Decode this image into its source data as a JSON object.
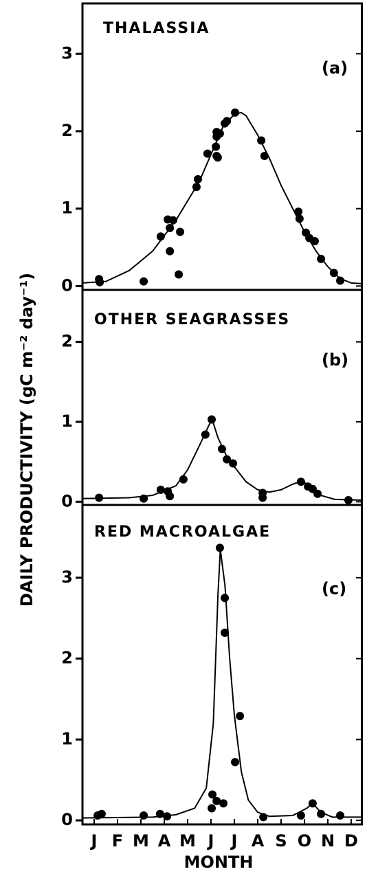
{
  "figure": {
    "ylabel": "DAILY PRODUCTIVITY (gC m⁻² day⁻¹)",
    "xlabel": "MONTH"
  },
  "chart_data": [
    {
      "type": "scatter",
      "title": "THALASSIA",
      "annotation": "(a)",
      "xlim": [
        0,
        12
      ],
      "ylim": [
        -0.05,
        3.65
      ],
      "yticks": [
        0,
        1,
        2,
        3
      ],
      "grid": false,
      "series": [
        {
          "type": "scatter",
          "color": "#000000",
          "x": [
            0.71,
            0.74,
            2.62,
            3.35,
            3.65,
            3.74,
            3.88,
            3.74,
            4.18,
            4.12,
            4.88,
            4.94,
            5.35,
            5.71,
            5.74,
            5.74,
            5.74,
            5.79,
            5.88,
            6.09,
            6.18,
            6.53,
            7.65,
            7.79,
            9.24,
            9.29,
            9.56,
            9.71,
            9.94,
            10.21,
            10.76,
            11.03
          ],
          "values": [
            0.09,
            0.05,
            0.06,
            0.64,
            0.86,
            0.75,
            0.85,
            0.45,
            0.7,
            0.15,
            1.28,
            1.38,
            1.71,
            1.8,
            1.93,
            1.99,
            1.68,
            1.66,
            1.97,
            2.1,
            2.13,
            2.24,
            1.88,
            1.68,
            0.96,
            0.87,
            0.69,
            0.62,
            0.58,
            0.35,
            0.17,
            0.07
          ]
        },
        {
          "type": "line",
          "color": "#000000",
          "x": [
            0,
            1,
            2,
            3,
            4,
            5,
            5.5,
            6,
            6.5,
            6.8,
            7,
            7.5,
            8,
            8.5,
            9,
            9.5,
            10,
            10.5,
            11,
            11.5,
            12
          ],
          "values": [
            0.04,
            0.06,
            0.2,
            0.45,
            0.85,
            1.35,
            1.7,
            2.05,
            2.22,
            2.24,
            2.2,
            1.95,
            1.65,
            1.3,
            1.0,
            0.7,
            0.45,
            0.25,
            0.1,
            0.04,
            0.03
          ]
        }
      ]
    },
    {
      "type": "scatter",
      "title": "OTHER SEAGRASSES",
      "annotation": "(b)",
      "xlim": [
        0,
        12
      ],
      "ylim": [
        -0.04,
        2.65
      ],
      "yticks": [
        0,
        1,
        2
      ],
      "grid": false,
      "series": [
        {
          "type": "scatter",
          "color": "#000000",
          "x": [
            0.71,
            2.62,
            3.35,
            3.65,
            3.74,
            4.32,
            5.26,
            5.53,
            5.97,
            6.18,
            6.44,
            7.71,
            7.71,
            9.35,
            9.65,
            9.85,
            10.06,
            11.38
          ],
          "values": [
            0.05,
            0.04,
            0.15,
            0.13,
            0.07,
            0.28,
            0.84,
            1.03,
            0.66,
            0.53,
            0.48,
            0.11,
            0.05,
            0.25,
            0.19,
            0.16,
            0.1,
            0.02
          ]
        },
        {
          "type": "line",
          "color": "#000000",
          "x": [
            0,
            2,
            3,
            4,
            4.5,
            5,
            5.4,
            5.55,
            5.8,
            6.2,
            6.6,
            7,
            7.5,
            8,
            8.5,
            9,
            9.4,
            9.8,
            10.2,
            10.8,
            12
          ],
          "values": [
            0.04,
            0.05,
            0.08,
            0.2,
            0.4,
            0.7,
            0.95,
            1.03,
            0.8,
            0.55,
            0.4,
            0.25,
            0.15,
            0.12,
            0.15,
            0.22,
            0.26,
            0.18,
            0.08,
            0.03,
            0.02
          ]
        }
      ]
    },
    {
      "type": "scatter",
      "title": "RED MACROALGAE",
      "annotation": "(c)",
      "xlim": [
        0,
        12
      ],
      "ylim": [
        -0.05,
        3.9
      ],
      "yticks": [
        0,
        1,
        2,
        3
      ],
      "grid": false,
      "xticks": [
        {
          "value": 0.5,
          "label": "J"
        },
        {
          "value": 1.5,
          "label": "F"
        },
        {
          "value": 2.5,
          "label": "M"
        },
        {
          "value": 3.5,
          "label": "A"
        },
        {
          "value": 4.5,
          "label": "M"
        },
        {
          "value": 5.5,
          "label": "J"
        },
        {
          "value": 6.5,
          "label": "J"
        },
        {
          "value": 7.5,
          "label": "A"
        },
        {
          "value": 8.5,
          "label": "S"
        },
        {
          "value": 9.5,
          "label": "O"
        },
        {
          "value": 10.5,
          "label": "N"
        },
        {
          "value": 11.5,
          "label": "D"
        }
      ],
      "series": [
        {
          "type": "scatter",
          "color": "#000000",
          "x": [
            0.65,
            0.82,
            2.62,
            3.32,
            3.62,
            5.53,
            5.56,
            5.74,
            6.03,
            5.88,
            6.09,
            6.09,
            6.53,
            6.74,
            7.74,
            9.35,
            9.85,
            10.21,
            11.03
          ],
          "values": [
            0.06,
            0.08,
            0.06,
            0.08,
            0.05,
            0.15,
            0.32,
            0.24,
            0.21,
            3.37,
            2.75,
            2.32,
            0.72,
            1.29,
            0.04,
            0.06,
            0.21,
            0.08,
            0.06
          ]
        },
        {
          "type": "line",
          "color": "#000000",
          "x": [
            0,
            3,
            4,
            4.8,
            5.3,
            5.6,
            5.8,
            5.9,
            6.1,
            6.3,
            6.5,
            6.8,
            7.1,
            7.5,
            8,
            9,
            9.6,
            9.85,
            10.2,
            10.7,
            12
          ],
          "values": [
            0.03,
            0.04,
            0.07,
            0.15,
            0.4,
            1.2,
            2.8,
            3.35,
            2.9,
            2.0,
            1.3,
            0.6,
            0.25,
            0.1,
            0.05,
            0.06,
            0.15,
            0.21,
            0.1,
            0.04,
            0.04
          ]
        }
      ]
    }
  ]
}
